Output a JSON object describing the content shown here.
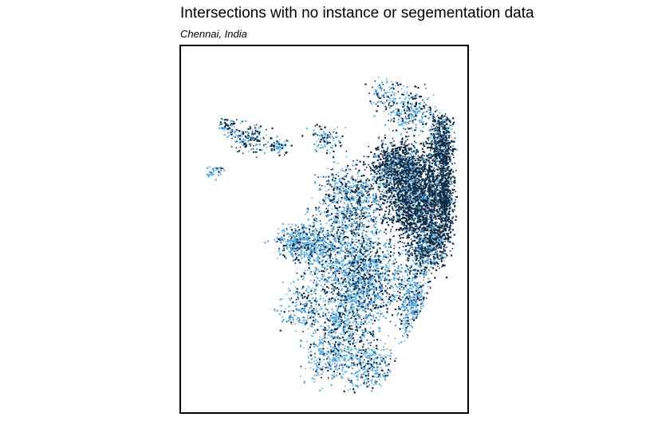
{
  "header": {
    "title": "Intersections with no instance or segementation data",
    "subtitle": "Chennai, India"
  },
  "map": {
    "colors": {
      "dark_points": "#0d2a45",
      "light_points": "#5aaee3",
      "background": "#ffffff",
      "frame": "#000000"
    }
  }
}
